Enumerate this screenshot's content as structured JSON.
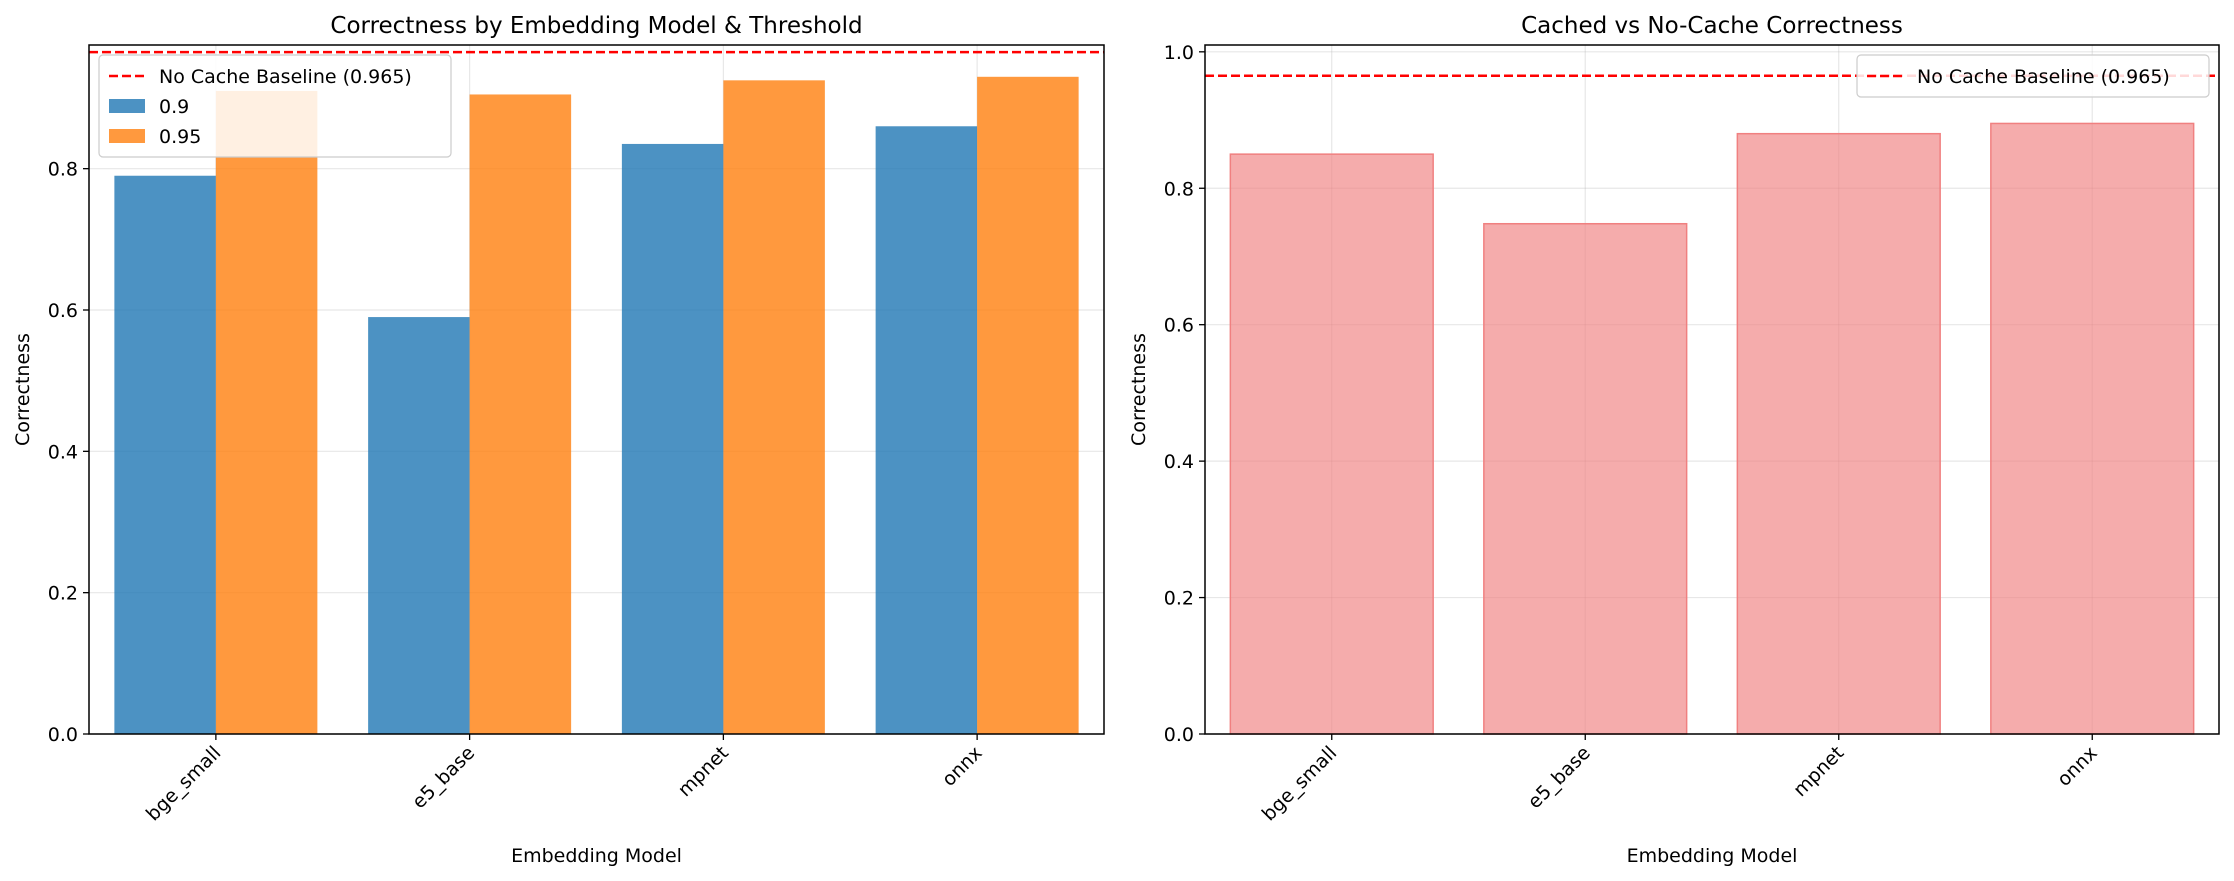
{
  "chart_data": [
    {
      "type": "bar",
      "title": "Correctness by Embedding Model & Threshold",
      "xlabel": "Embedding Model",
      "ylabel": "Correctness",
      "categories": [
        "bge_small",
        "e5_base",
        "mpnet",
        "onnx"
      ],
      "series": [
        {
          "name": "0.9",
          "values": [
            0.79,
            0.59,
            0.835,
            0.86
          ],
          "color": "#1f77b4"
        },
        {
          "name": "0.95",
          "values": [
            0.91,
            0.905,
            0.925,
            0.93
          ],
          "color": "#ff7f0e"
        }
      ],
      "baseline": {
        "label": "No Cache Baseline (0.965)",
        "value": 0.965,
        "color": "#ff0000"
      },
      "ylim": [
        0,
        0.975
      ],
      "yticks": [
        "0.0",
        "0.2",
        "0.4",
        "0.6",
        "0.8"
      ],
      "grid": true,
      "legend_position": "upper-left",
      "xtick_rotation": 45
    },
    {
      "type": "bar",
      "title": "Cached vs No-Cache Correctness",
      "xlabel": "Embedding Model",
      "ylabel": "Correctness",
      "categories": [
        "bge_small",
        "e5_base",
        "mpnet",
        "onnx"
      ],
      "series": [
        {
          "values": [
            0.85,
            0.748,
            0.88,
            0.895
          ],
          "color": "#f08080"
        }
      ],
      "baseline": {
        "label": "No Cache Baseline (0.965)",
        "value": 0.965,
        "color": "#ff0000"
      },
      "ylim": [
        0,
        1.01
      ],
      "yticks": [
        "0.0",
        "0.2",
        "0.4",
        "0.6",
        "0.8",
        "1.0"
      ],
      "grid": true,
      "legend_position": "upper-right",
      "xtick_rotation": 45
    }
  ]
}
